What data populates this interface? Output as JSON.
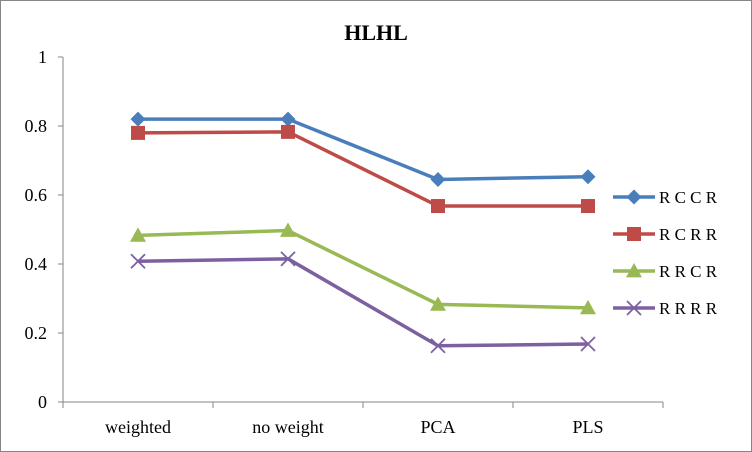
{
  "chart_data": {
    "type": "line",
    "title": "HLHL",
    "xlabel": "",
    "ylabel": "",
    "categories": [
      "weighted",
      "no weight",
      "PCA",
      "PLS"
    ],
    "ylim": [
      0,
      1
    ],
    "yticks": [
      0,
      0.2,
      0.4,
      0.6,
      0.8,
      1
    ],
    "ytick_labels": [
      "0",
      "0.2",
      "0.4",
      "0.6",
      "0.8",
      "1"
    ],
    "grid": false,
    "legend_position": "right",
    "series": [
      {
        "name": "R C C R",
        "values": [
          0.82,
          0.82,
          0.645,
          0.653
        ],
        "color": "#4A7EBB",
        "marker": "diamond"
      },
      {
        "name": "R C R R",
        "values": [
          0.78,
          0.783,
          0.568,
          0.568
        ],
        "color": "#BE4B48",
        "marker": "square"
      },
      {
        "name": "R R C R",
        "values": [
          0.483,
          0.497,
          0.283,
          0.273
        ],
        "color": "#98B954",
        "marker": "triangle"
      },
      {
        "name": "R R R R",
        "values": [
          0.408,
          0.415,
          0.163,
          0.168
        ],
        "color": "#7D60A0",
        "marker": "x"
      }
    ]
  }
}
